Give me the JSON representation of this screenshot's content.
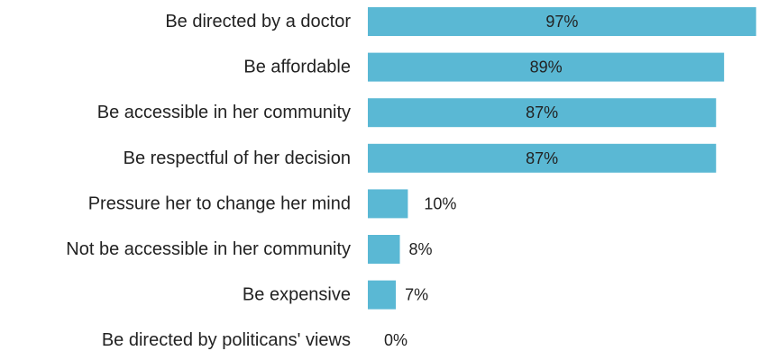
{
  "chart_data": {
    "type": "bar",
    "orientation": "horizontal",
    "title": "",
    "xlabel": "",
    "ylabel": "",
    "categories": [
      "Be directed by a doctor",
      "Be affordable",
      "Be accessible in her community",
      "Be respectful of her decision",
      "Pressure her to change her mind",
      "Not be accessible in her community",
      "Be expensive",
      "Be directed by politicans' views"
    ],
    "values": [
      97,
      89,
      87,
      87,
      10,
      8,
      7,
      0
    ],
    "value_labels": [
      "97%",
      "89%",
      "87%",
      "87%",
      "10%",
      "8%",
      "7%",
      "0%"
    ],
    "xlim": [
      0,
      100
    ],
    "grid": false,
    "legend": "none",
    "bar_color": "#5ab8d4"
  }
}
